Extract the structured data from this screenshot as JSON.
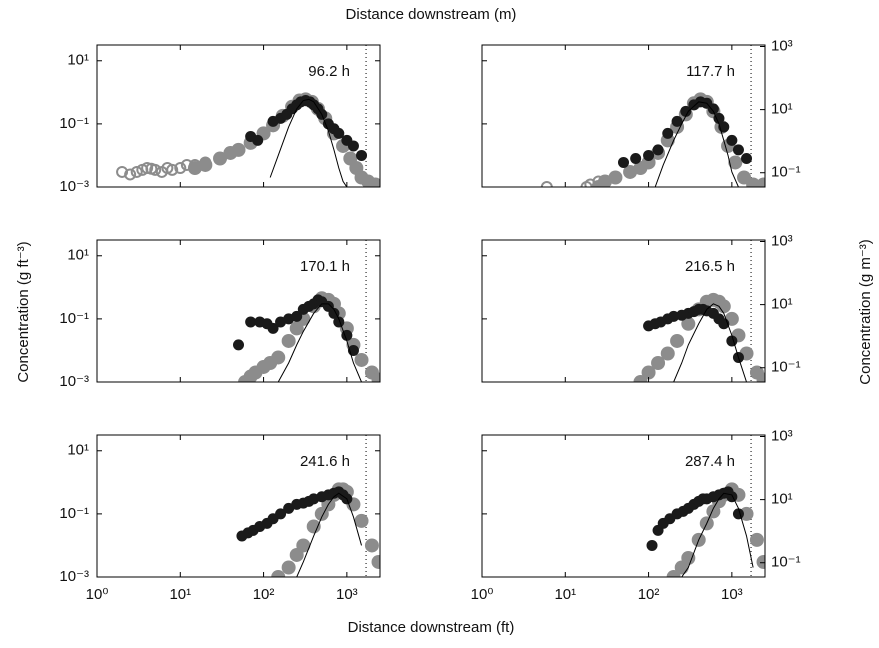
{
  "figure": {
    "top_xlabel": "Distance downstream (m)",
    "xlabel": "Distance downstream (ft)",
    "ylabel": "Concentration (g ft⁻³)",
    "y2label": "Concentration (g m⁻³)"
  },
  "chart_data": [
    {
      "type": "scatter",
      "annotation": "96.2 h",
      "log_x": true,
      "log_y": true,
      "xlim": [
        1,
        2500
      ],
      "xticks": [
        {
          "value": 1,
          "label": "10⁰"
        },
        {
          "value": 10,
          "label": "10¹"
        },
        {
          "value": 100,
          "label": "10²"
        },
        {
          "value": 1000,
          "label": "10³"
        }
      ],
      "ylim": [
        0.001,
        31.6
      ],
      "yticks": [
        {
          "value": 0.001,
          "label": "10⁻³"
        },
        {
          "value": 0.1,
          "label": "10⁻¹"
        },
        {
          "value": 10,
          "label": "10¹"
        }
      ],
      "show_xticklabels": false,
      "show_yticklabels": true,
      "vline": 1700,
      "series": [
        {
          "marker": "open",
          "color": "#8c8c8c",
          "x": [
            2,
            2.5,
            3,
            3.5,
            4,
            4.5,
            5,
            6,
            7,
            8,
            10,
            12,
            15,
            20
          ],
          "values": [
            0.003,
            0.0025,
            0.003,
            0.0035,
            0.004,
            0.0038,
            0.0035,
            0.003,
            0.004,
            0.0035,
            0.004,
            0.005,
            0.005,
            0.006
          ]
        },
        {
          "marker": "filled",
          "color": "#8c8c8c",
          "x": [
            15,
            20,
            30,
            40,
            50,
            70,
            100,
            130,
            170,
            220,
            270,
            320,
            380,
            450,
            550,
            700,
            900,
            1100,
            1300,
            1500,
            1800,
            2200
          ],
          "values": [
            0.004,
            0.005,
            0.008,
            0.012,
            0.015,
            0.025,
            0.05,
            0.09,
            0.18,
            0.35,
            0.55,
            0.6,
            0.5,
            0.3,
            0.15,
            0.05,
            0.02,
            0.008,
            0.004,
            0.002,
            0.0015,
            0.0012
          ]
        },
        {
          "marker": "filled",
          "color": "#1a1a1a",
          "x": [
            70,
            85,
            130,
            160,
            190,
            220,
            250,
            280,
            320,
            360,
            400,
            450,
            500,
            600,
            700,
            800,
            1000,
            1200,
            1500
          ],
          "values": [
            0.04,
            0.03,
            0.12,
            0.15,
            0.2,
            0.3,
            0.4,
            0.5,
            0.55,
            0.5,
            0.4,
            0.3,
            0.2,
            0.1,
            0.07,
            0.05,
            0.03,
            0.02,
            0.01
          ]
        },
        {
          "marker": "line",
          "color": "#000000",
          "x": [
            120,
            150,
            200,
            250,
            300,
            350,
            400,
            500,
            600,
            700,
            800,
            900,
            1000
          ],
          "values": [
            0.002,
            0.01,
            0.08,
            0.3,
            0.55,
            0.6,
            0.5,
            0.2,
            0.06,
            0.015,
            0.004,
            0.0015,
            0.001
          ]
        }
      ]
    },
    {
      "type": "scatter",
      "annotation": "117.7 h",
      "log_x": true,
      "log_y": true,
      "xlim": [
        1,
        2500
      ],
      "xticks": [
        {
          "value": 1,
          "label": "10⁰"
        },
        {
          "value": 10,
          "label": "10¹"
        },
        {
          "value": 100,
          "label": "10²"
        },
        {
          "value": 1000,
          "label": "10³"
        }
      ],
      "ylim": [
        0.001,
        31.6
      ],
      "yticks": [
        {
          "value": 0.001,
          "label": "10⁻³"
        },
        {
          "value": 0.1,
          "label": "10⁻¹"
        },
        {
          "value": 10,
          "label": "10¹"
        }
      ],
      "y2lim": [
        0.0353,
        1116
      ],
      "y2ticks": [
        {
          "value": 0.1,
          "label": "10⁻¹"
        },
        {
          "value": 10,
          "label": "10¹"
        },
        {
          "value": 1000,
          "label": "10³"
        }
      ],
      "show_xticklabels": false,
      "show_yticklabels": false,
      "vline": 1700,
      "series": [
        {
          "marker": "open",
          "color": "#8c8c8c",
          "x": [
            6,
            18,
            20,
            25
          ],
          "values": [
            0.001,
            0.001,
            0.0012,
            0.0015
          ]
        },
        {
          "marker": "filled",
          "color": "#8c8c8c",
          "x": [
            25,
            30,
            40,
            60,
            80,
            100,
            130,
            170,
            220,
            280,
            350,
            420,
            500,
            600,
            750,
            900,
            1100,
            1400,
            1800,
            2400
          ],
          "values": [
            0.001,
            0.0015,
            0.002,
            0.003,
            0.004,
            0.006,
            0.012,
            0.03,
            0.08,
            0.2,
            0.45,
            0.6,
            0.5,
            0.25,
            0.08,
            0.02,
            0.006,
            0.002,
            0.0012,
            0.0012
          ]
        },
        {
          "marker": "filled",
          "color": "#1a1a1a",
          "x": [
            50,
            70,
            100,
            130,
            170,
            220,
            280,
            350,
            420,
            500,
            600,
            700,
            800,
            1000,
            1200,
            1500
          ],
          "values": [
            0.006,
            0.008,
            0.01,
            0.015,
            0.05,
            0.12,
            0.25,
            0.4,
            0.5,
            0.45,
            0.3,
            0.15,
            0.08,
            0.03,
            0.015,
            0.008
          ]
        },
        {
          "marker": "line",
          "color": "#000000",
          "x": [
            120,
            150,
            200,
            250,
            300,
            400,
            500,
            600,
            700,
            800,
            900,
            1000,
            1200
          ],
          "values": [
            0.001,
            0.005,
            0.03,
            0.1,
            0.25,
            0.5,
            0.45,
            0.25,
            0.1,
            0.03,
            0.01,
            0.003,
            0.001
          ]
        }
      ]
    },
    {
      "type": "scatter",
      "annotation": "170.1 h",
      "log_x": true,
      "log_y": true,
      "xlim": [
        1,
        2500
      ],
      "xticks": [
        {
          "value": 1,
          "label": "10⁰"
        },
        {
          "value": 10,
          "label": "10¹"
        },
        {
          "value": 100,
          "label": "10²"
        },
        {
          "value": 1000,
          "label": "10³"
        }
      ],
      "ylim": [
        0.001,
        31.6
      ],
      "yticks": [
        {
          "value": 0.001,
          "label": "10⁻³"
        },
        {
          "value": 0.1,
          "label": "10⁻¹"
        },
        {
          "value": 10,
          "label": "10¹"
        }
      ],
      "show_xticklabels": false,
      "show_yticklabels": true,
      "vline": 1700,
      "series": [
        {
          "marker": "filled",
          "color": "#8c8c8c",
          "x": [
            60,
            70,
            80,
            100,
            120,
            150,
            200,
            250,
            300,
            400,
            500,
            600,
            700,
            800,
            1000,
            1200,
            1500,
            2000,
            2400
          ],
          "values": [
            0.001,
            0.0015,
            0.002,
            0.003,
            0.004,
            0.006,
            0.02,
            0.05,
            0.1,
            0.25,
            0.45,
            0.4,
            0.3,
            0.15,
            0.05,
            0.015,
            0.005,
            0.002,
            0.0012
          ]
        },
        {
          "marker": "filled",
          "color": "#1a1a1a",
          "x": [
            50,
            70,
            90,
            110,
            130,
            160,
            200,
            250,
            300,
            350,
            400,
            450,
            500,
            600,
            700,
            800,
            1000,
            1200
          ],
          "values": [
            0.015,
            0.08,
            0.08,
            0.07,
            0.05,
            0.08,
            0.1,
            0.12,
            0.2,
            0.25,
            0.3,
            0.4,
            0.35,
            0.25,
            0.15,
            0.08,
            0.03,
            0.01
          ]
        },
        {
          "marker": "line",
          "color": "#000000",
          "x": [
            150,
            200,
            250,
            300,
            400,
            500,
            600,
            700,
            800,
            1000,
            1200,
            1500
          ],
          "values": [
            0.001,
            0.004,
            0.015,
            0.04,
            0.15,
            0.3,
            0.3,
            0.2,
            0.1,
            0.02,
            0.004,
            0.001
          ]
        }
      ]
    },
    {
      "type": "scatter",
      "annotation": "216.5 h",
      "log_x": true,
      "log_y": true,
      "xlim": [
        1,
        2500
      ],
      "xticks": [
        {
          "value": 1,
          "label": "10⁰"
        },
        {
          "value": 10,
          "label": "10¹"
        },
        {
          "value": 100,
          "label": "10²"
        },
        {
          "value": 1000,
          "label": "10³"
        }
      ],
      "ylim": [
        0.001,
        31.6
      ],
      "yticks": [
        {
          "value": 0.001,
          "label": "10⁻³"
        },
        {
          "value": 0.1,
          "label": "10⁻¹"
        },
        {
          "value": 10,
          "label": "10¹"
        }
      ],
      "y2lim": [
        0.0353,
        1116
      ],
      "y2ticks": [
        {
          "value": 0.1,
          "label": "10⁻¹"
        },
        {
          "value": 10,
          "label": "10¹"
        },
        {
          "value": 1000,
          "label": "10³"
        }
      ],
      "show_xticklabels": false,
      "show_yticklabels": false,
      "vline": 1700,
      "series": [
        {
          "marker": "filled",
          "color": "#8c8c8c",
          "x": [
            80,
            100,
            130,
            170,
            220,
            300,
            400,
            500,
            600,
            700,
            800,
            1000,
            1200,
            1500,
            2000,
            2400
          ],
          "values": [
            0.001,
            0.002,
            0.004,
            0.008,
            0.02,
            0.07,
            0.2,
            0.35,
            0.4,
            0.35,
            0.25,
            0.1,
            0.03,
            0.008,
            0.002,
            0.0012
          ]
        },
        {
          "marker": "filled",
          "color": "#1a1a1a",
          "x": [
            100,
            120,
            140,
            170,
            200,
            250,
            300,
            350,
            400,
            450,
            500,
            600,
            700,
            800,
            1000,
            1200
          ],
          "values": [
            0.06,
            0.07,
            0.08,
            0.1,
            0.12,
            0.13,
            0.15,
            0.17,
            0.2,
            0.2,
            0.18,
            0.15,
            0.1,
            0.07,
            0.02,
            0.006
          ]
        },
        {
          "marker": "line",
          "color": "#000000",
          "x": [
            200,
            250,
            300,
            400,
            500,
            600,
            700,
            800,
            1000,
            1200,
            1500
          ],
          "values": [
            0.001,
            0.004,
            0.015,
            0.07,
            0.2,
            0.3,
            0.25,
            0.15,
            0.03,
            0.006,
            0.001
          ]
        }
      ]
    },
    {
      "type": "scatter",
      "annotation": "241.6 h",
      "log_x": true,
      "log_y": true,
      "xlim": [
        1,
        2500
      ],
      "xticks": [
        {
          "value": 1,
          "label": "10⁰"
        },
        {
          "value": 10,
          "label": "10¹"
        },
        {
          "value": 100,
          "label": "10²"
        },
        {
          "value": 1000,
          "label": "10³"
        }
      ],
      "ylim": [
        0.001,
        31.6
      ],
      "yticks": [
        {
          "value": 0.001,
          "label": "10⁻³"
        },
        {
          "value": 0.1,
          "label": "10⁻¹"
        },
        {
          "value": 10,
          "label": "10¹"
        }
      ],
      "show_xticklabels": true,
      "show_yticklabels": true,
      "vline": 1700,
      "series": [
        {
          "marker": "filled",
          "color": "#8c8c8c",
          "x": [
            150,
            200,
            250,
            300,
            400,
            500,
            600,
            700,
            800,
            900,
            1000,
            1200,
            1500,
            2000,
            2400
          ],
          "values": [
            0.001,
            0.002,
            0.005,
            0.01,
            0.04,
            0.1,
            0.2,
            0.4,
            0.6,
            0.6,
            0.5,
            0.2,
            0.06,
            0.01,
            0.003
          ]
        },
        {
          "marker": "filled",
          "color": "#1a1a1a",
          "x": [
            55,
            65,
            75,
            90,
            110,
            130,
            160,
            200,
            250,
            300,
            350,
            400,
            500,
            600,
            700,
            800,
            900,
            1000
          ],
          "values": [
            0.02,
            0.025,
            0.03,
            0.04,
            0.05,
            0.07,
            0.1,
            0.15,
            0.2,
            0.22,
            0.25,
            0.3,
            0.35,
            0.4,
            0.45,
            0.5,
            0.4,
            0.3
          ]
        },
        {
          "marker": "line",
          "color": "#000000",
          "x": [
            250,
            300,
            400,
            500,
            600,
            700,
            800,
            1000,
            1200,
            1500
          ],
          "values": [
            0.001,
            0.003,
            0.02,
            0.08,
            0.2,
            0.35,
            0.45,
            0.3,
            0.08,
            0.01
          ]
        }
      ]
    },
    {
      "type": "scatter",
      "annotation": "287.4 h",
      "log_x": true,
      "log_y": true,
      "xlim": [
        1,
        2500
      ],
      "xticks": [
        {
          "value": 1,
          "label": "10⁰"
        },
        {
          "value": 10,
          "label": "10¹"
        },
        {
          "value": 100,
          "label": "10²"
        },
        {
          "value": 1000,
          "label": "10³"
        }
      ],
      "ylim": [
        0.001,
        31.6
      ],
      "yticks": [
        {
          "value": 0.001,
          "label": "10⁻³"
        },
        {
          "value": 0.1,
          "label": "10⁻¹"
        },
        {
          "value": 10,
          "label": "10¹"
        }
      ],
      "y2lim": [
        0.0353,
        1116
      ],
      "y2ticks": [
        {
          "value": 0.1,
          "label": "10⁻¹"
        },
        {
          "value": 10,
          "label": "10¹"
        },
        {
          "value": 1000,
          "label": "10³"
        }
      ],
      "show_xticklabels": true,
      "show_yticklabels": false,
      "vline": 1700,
      "series": [
        {
          "marker": "filled",
          "color": "#8c8c8c",
          "x": [
            200,
            250,
            300,
            400,
            500,
            600,
            700,
            800,
            1000,
            1200,
            1500,
            2000,
            2400
          ],
          "values": [
            0.001,
            0.002,
            0.004,
            0.015,
            0.05,
            0.12,
            0.25,
            0.4,
            0.6,
            0.4,
            0.1,
            0.015,
            0.003
          ]
        },
        {
          "marker": "filled",
          "color": "#1a1a1a",
          "x": [
            110,
            130,
            150,
            180,
            220,
            260,
            300,
            350,
            400,
            450,
            500,
            600,
            700,
            800,
            900,
            1000,
            1200
          ],
          "values": [
            0.01,
            0.03,
            0.05,
            0.07,
            0.1,
            0.12,
            0.15,
            0.2,
            0.25,
            0.3,
            0.3,
            0.35,
            0.4,
            0.45,
            0.5,
            0.35,
            0.1
          ]
        },
        {
          "marker": "line",
          "color": "#000000",
          "x": [
            250,
            300,
            400,
            500,
            600,
            700,
            800,
            1000,
            1200,
            1500,
            1800
          ],
          "values": [
            0.001,
            0.002,
            0.015,
            0.05,
            0.15,
            0.3,
            0.45,
            0.4,
            0.15,
            0.02,
            0.002
          ]
        }
      ]
    }
  ]
}
